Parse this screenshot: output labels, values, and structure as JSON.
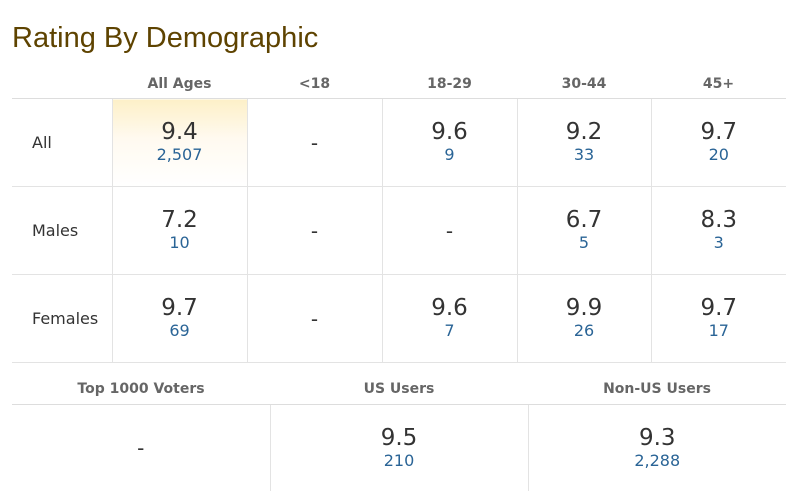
{
  "title": "Rating By Demographic",
  "age_columns": [
    "All Ages",
    "<18",
    "18-29",
    "30-44",
    "45+"
  ],
  "rows": [
    {
      "label": "All",
      "cells": [
        {
          "rating": "9.4",
          "votes": "2,507"
        },
        {
          "rating": "-",
          "votes": ""
        },
        {
          "rating": "9.6",
          "votes": "9"
        },
        {
          "rating": "9.2",
          "votes": "33"
        },
        {
          "rating": "9.7",
          "votes": "20"
        }
      ]
    },
    {
      "label": "Males",
      "cells": [
        {
          "rating": "7.2",
          "votes": "10"
        },
        {
          "rating": "-",
          "votes": ""
        },
        {
          "rating": "-",
          "votes": ""
        },
        {
          "rating": "6.7",
          "votes": "5"
        },
        {
          "rating": "8.3",
          "votes": "3"
        }
      ]
    },
    {
      "label": "Females",
      "cells": [
        {
          "rating": "9.7",
          "votes": "69"
        },
        {
          "rating": "-",
          "votes": ""
        },
        {
          "rating": "9.6",
          "votes": "7"
        },
        {
          "rating": "9.9",
          "votes": "26"
        },
        {
          "rating": "9.7",
          "votes": "17"
        }
      ]
    }
  ],
  "user_groups": {
    "headers": [
      "Top 1000 Voters",
      "US Users",
      "Non-US Users"
    ],
    "cells": [
      {
        "rating": "-",
        "votes": ""
      },
      {
        "rating": "9.5",
        "votes": "210"
      },
      {
        "rating": "9.3",
        "votes": "2,288"
      }
    ]
  },
  "colors": {
    "title": "#5e4300",
    "vote_link": "#2a6496",
    "highlight": "#fdf0c8"
  }
}
